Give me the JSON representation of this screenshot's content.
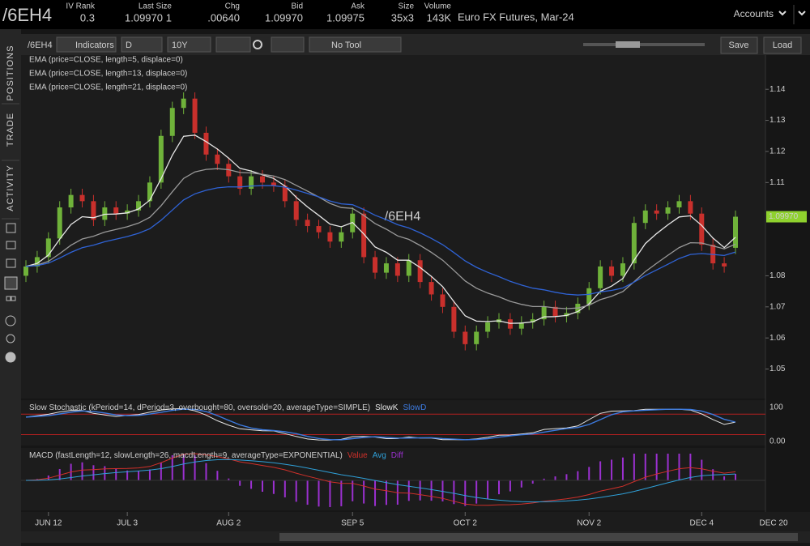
{
  "quote_bar": {
    "symbol": "/6EH4",
    "fields": [
      {
        "label": "IV Rank",
        "value": "0.3",
        "color": "#d8d8d8"
      },
      {
        "label": "Last Size",
        "value": "1.09970",
        "size": "1",
        "color": "#ff4a4a"
      },
      {
        "label": "Chg",
        "value": ".00640",
        "color": "#3ddc3d"
      },
      {
        "label": "Bid",
        "value": "1.09970",
        "color": "#3ddc3d"
      },
      {
        "label": "Ask",
        "value": "1.09975",
        "color": "#3ddc3d"
      },
      {
        "label": "Size",
        "value": "35x3",
        "color": "#9a9a9a"
      },
      {
        "label": "Volume",
        "value": "143K",
        "color": "#d8d8d8"
      }
    ],
    "description": "Euro FX Futures, Mar-24",
    "accounts": "Accounts"
  },
  "sidebar": {
    "tabs": [
      "POSITIONS",
      "TRADE",
      "ACTIVITY"
    ]
  },
  "toolbar": {
    "symbol": "/6EH4",
    "indicators": "Indicators",
    "aggregation": "D",
    "range": "10Y",
    "tool": "No Tool",
    "save": "Save",
    "load": "Load"
  },
  "chart_data": {
    "type": "candlestick",
    "watermark": "/6EH4",
    "studies": [
      {
        "label": "EMA (price=CLOSE, length=5, displace=0)",
        "color": "#e6e6e6"
      },
      {
        "label": "EMA (price=CLOSE, length=13, displace=0)",
        "color": "#9a9a9a"
      },
      {
        "label": "EMA (price=CLOSE, length=21, displace=0)",
        "color": "#2f63d6"
      }
    ],
    "up_color": "#6fb23a",
    "down_color": "#c9302c",
    "categories": [
      null,
      null,
      "JUN 12",
      null,
      null,
      null,
      null,
      null,
      null,
      "JUL 3",
      null,
      null,
      null,
      null,
      null,
      null,
      null,
      null,
      "AUG 2",
      null,
      null,
      null,
      null,
      null,
      null,
      null,
      null,
      null,
      null,
      "SEP 5",
      null,
      null,
      null,
      null,
      null,
      null,
      null,
      null,
      null,
      "OCT 2",
      null,
      null,
      null,
      null,
      null,
      null,
      null,
      null,
      null,
      null,
      "NOV 2",
      null,
      null,
      null,
      null,
      null,
      null,
      null,
      null,
      null,
      "DEC 4",
      null,
      null,
      null
    ],
    "open": [
      1.08,
      1.083,
      1.086,
      1.092,
      1.102,
      1.106,
      1.104,
      1.098,
      1.102,
      1.1,
      1.101,
      1.104,
      1.11,
      1.125,
      1.134,
      1.137,
      1.126,
      1.119,
      1.116,
      1.112,
      1.108,
      1.112,
      1.11,
      1.109,
      1.104,
      1.098,
      1.096,
      1.094,
      1.091,
      1.094,
      1.1,
      1.086,
      1.081,
      1.084,
      1.08,
      1.085,
      1.078,
      1.074,
      1.07,
      1.062,
      1.058,
      1.062,
      1.065,
      1.066,
      1.063,
      1.065,
      1.066,
      1.07,
      1.067,
      1.068,
      1.071,
      1.076,
      1.083,
      1.08,
      1.084,
      1.097,
      1.101,
      1.1,
      1.102,
      1.104,
      1.1,
      1.09,
      1.084,
      1.089
    ],
    "high": [
      1.085,
      1.088,
      1.094,
      1.104,
      1.108,
      1.108,
      1.106,
      1.104,
      1.104,
      1.103,
      1.106,
      1.112,
      1.127,
      1.136,
      1.139,
      1.139,
      1.128,
      1.121,
      1.118,
      1.114,
      1.114,
      1.114,
      1.112,
      1.111,
      1.106,
      1.1,
      1.098,
      1.096,
      1.096,
      1.102,
      1.102,
      1.088,
      1.086,
      1.086,
      1.087,
      1.087,
      1.08,
      1.076,
      1.072,
      1.064,
      1.064,
      1.067,
      1.068,
      1.068,
      1.067,
      1.068,
      1.072,
      1.072,
      1.07,
      1.073,
      1.078,
      1.085,
      1.085,
      1.086,
      1.099,
      1.103,
      1.103,
      1.104,
      1.106,
      1.106,
      1.102,
      1.092,
      1.086,
      1.101
    ],
    "low": [
      1.078,
      1.081,
      1.084,
      1.09,
      1.1,
      1.102,
      1.096,
      1.096,
      1.098,
      1.098,
      1.099,
      1.102,
      1.108,
      1.123,
      1.132,
      1.124,
      1.117,
      1.114,
      1.11,
      1.106,
      1.106,
      1.108,
      1.107,
      1.102,
      1.096,
      1.094,
      1.092,
      1.089,
      1.089,
      1.092,
      1.084,
      1.079,
      1.079,
      1.078,
      1.078,
      1.076,
      1.072,
      1.068,
      1.06,
      1.056,
      1.056,
      1.06,
      1.063,
      1.061,
      1.061,
      1.063,
      1.064,
      1.065,
      1.065,
      1.066,
      1.069,
      1.074,
      1.078,
      1.078,
      1.082,
      1.095,
      1.098,
      1.098,
      1.1,
      1.098,
      1.088,
      1.082,
      1.081,
      1.087
    ],
    "close": [
      1.083,
      1.086,
      1.092,
      1.102,
      1.106,
      1.104,
      1.098,
      1.102,
      1.1,
      1.101,
      1.104,
      1.11,
      1.125,
      1.134,
      1.137,
      1.126,
      1.119,
      1.116,
      1.112,
      1.108,
      1.112,
      1.11,
      1.109,
      1.104,
      1.098,
      1.096,
      1.094,
      1.091,
      1.094,
      1.1,
      1.086,
      1.081,
      1.084,
      1.08,
      1.085,
      1.078,
      1.074,
      1.07,
      1.062,
      1.058,
      1.062,
      1.065,
      1.066,
      1.063,
      1.065,
      1.066,
      1.07,
      1.067,
      1.068,
      1.071,
      1.076,
      1.083,
      1.08,
      1.084,
      1.097,
      1.101,
      1.1,
      1.102,
      1.104,
      1.1,
      1.09,
      1.084,
      1.083,
      1.099
    ],
    "ylim": [
      1.0405,
      1.151
    ],
    "yticks": [
      1.14,
      1.13,
      1.12,
      1.11,
      1.08,
      1.07,
      1.06,
      1.05
    ],
    "last_price_label": "1.09970",
    "axis_end_label": "DEC 20"
  },
  "stochastic": {
    "label": "Slow Stochastic (kPeriod=14, dPeriod=3, overbought=80, oversold=20, averageType=SIMPLE)",
    "series": [
      {
        "name": "SlowK",
        "color": "#e6e6e6"
      },
      {
        "name": "SlowD",
        "color": "#3d7be0"
      }
    ],
    "ylim": [
      -12,
      121
    ],
    "yticks": [
      100,
      {
        "value": 0,
        "label": "0.00"
      }
    ]
  },
  "macd": {
    "label": "MACD (fastLength=12, slowLength=26, macdLength=9, averageType=EXPONENTIAL)",
    "series": [
      {
        "name": "Value",
        "color": "#d0302a"
      },
      {
        "name": "Avg",
        "color": "#2fa0d8"
      },
      {
        "name": "Diff",
        "color": "#9b30d0"
      }
    ]
  }
}
